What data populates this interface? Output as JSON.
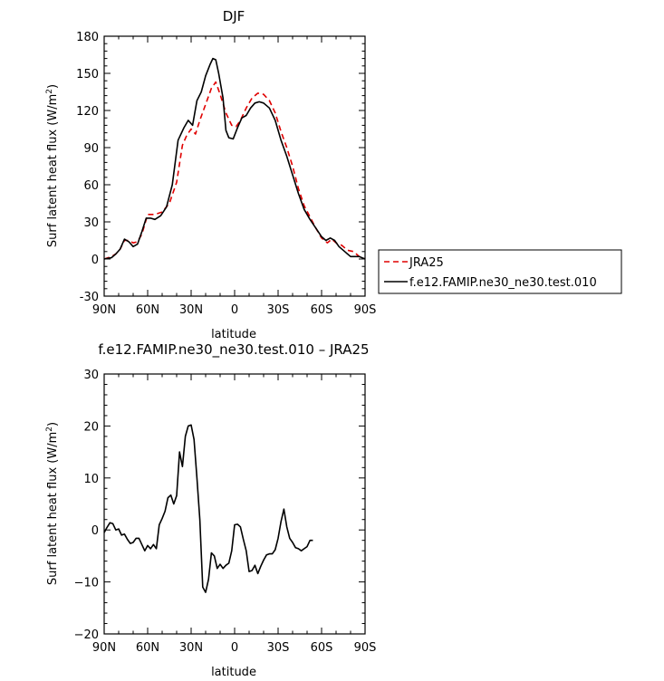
{
  "chart_data": [
    {
      "type": "line",
      "title": "DJF",
      "xlabel": "latitude",
      "ylabel": "Surf latent heat flux (W/m",
      "ylabel_sup": "2",
      "ylabel_end": ")",
      "xlim": [
        90,
        -90
      ],
      "ylim": [
        -30,
        180
      ],
      "xticks": [
        90,
        60,
        30,
        0,
        -30,
        -60,
        -90
      ],
      "xtick_labels": [
        "90N",
        "60N",
        "30N",
        "0",
        "30S",
        "60S",
        "90S"
      ],
      "yticks": [
        -30,
        0,
        30,
        60,
        90,
        120,
        150,
        180
      ],
      "ytick_labels": [
        "-30",
        "0",
        "30",
        "60",
        "90",
        "120",
        "150",
        "180"
      ],
      "legend_position": "right",
      "series": [
        {
          "name": "JRA25",
          "color": "#e00000",
          "dash": "dashed",
          "points": [
            [
              90,
              0
            ],
            [
              85,
              2
            ],
            [
              82,
              4
            ],
            [
              79,
              8
            ],
            [
              76,
              15
            ],
            [
              73,
              15
            ],
            [
              70,
              13
            ],
            [
              67,
              14
            ],
            [
              64,
              20
            ],
            [
              60,
              36
            ],
            [
              55,
              36
            ],
            [
              50,
              38
            ],
            [
              45,
              45
            ],
            [
              40,
              62
            ],
            [
              36,
              92
            ],
            [
              33,
              100
            ],
            [
              30,
              105
            ],
            [
              27,
              101
            ],
            [
              24,
              112
            ],
            [
              20,
              125
            ],
            [
              16,
              138
            ],
            [
              13,
              143
            ],
            [
              10,
              133
            ],
            [
              6,
              118
            ],
            [
              2,
              108
            ],
            [
              -1,
              107
            ],
            [
              -4,
              112
            ],
            [
              -8,
              122
            ],
            [
              -12,
              130
            ],
            [
              -16,
              134
            ],
            [
              -20,
              133
            ],
            [
              -24,
              128
            ],
            [
              -28,
              118
            ],
            [
              -32,
              103
            ],
            [
              -36,
              90
            ],
            [
              -40,
              75
            ],
            [
              -44,
              57
            ],
            [
              -48,
              43
            ],
            [
              -52,
              34
            ],
            [
              -56,
              25
            ],
            [
              -60,
              17
            ],
            [
              -64,
              13
            ],
            [
              -67,
              16
            ],
            [
              -70,
              13
            ],
            [
              -74,
              11
            ],
            [
              -78,
              7
            ],
            [
              -82,
              6
            ],
            [
              -86,
              2
            ],
            [
              -90,
              0
            ]
          ]
        },
        {
          "name": "f.e12.FAMIP.ne30_ne30.test.010",
          "color": "#000000",
          "dash": "solid",
          "points": [
            [
              90,
              0
            ],
            [
              85,
              1
            ],
            [
              82,
              4
            ],
            [
              79,
              8
            ],
            [
              76,
              16
            ],
            [
              73,
              14
            ],
            [
              70,
              10
            ],
            [
              67,
              12
            ],
            [
              64,
              22
            ],
            [
              61,
              33
            ],
            [
              58,
              33
            ],
            [
              55,
              32
            ],
            [
              51,
              35
            ],
            [
              47,
              42
            ],
            [
              43,
              60
            ],
            [
              39,
              96
            ],
            [
              35,
              106
            ],
            [
              32,
              112
            ],
            [
              29,
              108
            ],
            [
              26,
              128
            ],
            [
              23,
              135
            ],
            [
              20,
              148
            ],
            [
              17,
              157
            ],
            [
              15,
              162
            ],
            [
              13,
              161
            ],
            [
              11,
              150
            ],
            [
              8,
              130
            ],
            [
              6,
              104
            ],
            [
              4,
              98
            ],
            [
              1,
              97
            ],
            [
              -2,
              106
            ],
            [
              -5,
              114
            ],
            [
              -8,
              116
            ],
            [
              -11,
              122
            ],
            [
              -14,
              126
            ],
            [
              -17,
              127
            ],
            [
              -20,
              126
            ],
            [
              -24,
              122
            ],
            [
              -28,
              112
            ],
            [
              -32,
              96
            ],
            [
              -36,
              83
            ],
            [
              -40,
              68
            ],
            [
              -44,
              53
            ],
            [
              -48,
              40
            ],
            [
              -52,
              32
            ],
            [
              -56,
              25
            ],
            [
              -60,
              18
            ],
            [
              -63,
              15
            ],
            [
              -66,
              17
            ],
            [
              -69,
              15
            ],
            [
              -72,
              10
            ],
            [
              -76,
              6
            ],
            [
              -80,
              2
            ],
            [
              -83,
              2
            ],
            [
              -86,
              2
            ],
            [
              -90,
              0
            ]
          ]
        }
      ]
    },
    {
      "type": "line",
      "title": "f.e12.FAMIP.ne30_ne30.test.010  –  JRA25",
      "xlabel": "latitude",
      "ylabel": "Surf latent heat flux (W/m",
      "ylabel_sup": "2",
      "ylabel_end": ")",
      "xlim": [
        90,
        -90
      ],
      "ylim": [
        -20,
        30
      ],
      "xticks": [
        90,
        60,
        30,
        0,
        -30,
        -60,
        -90
      ],
      "xtick_labels": [
        "90N",
        "60N",
        "30N",
        "0",
        "30S",
        "60S",
        "90S"
      ],
      "yticks": [
        -20,
        -10,
        0,
        10,
        20,
        30
      ],
      "ytick_labels": [
        "−20",
        "−10",
        "0",
        "10",
        "20",
        "30"
      ],
      "series": [
        {
          "color": "#000000",
          "dash": "solid",
          "points": [
            [
              90,
              -0.5
            ],
            [
              88,
              0.5
            ],
            [
              86,
              1.4
            ],
            [
              84,
              1.2
            ],
            [
              82,
              0
            ],
            [
              80,
              0.2
            ],
            [
              78,
              -1
            ],
            [
              76,
              -0.8
            ],
            [
              74,
              -1.8
            ],
            [
              72,
              -2.6
            ],
            [
              70,
              -2.4
            ],
            [
              68,
              -1.6
            ],
            [
              66,
              -1.6
            ],
            [
              64,
              -2.8
            ],
            [
              62,
              -4
            ],
            [
              60,
              -3
            ],
            [
              58,
              -3.6
            ],
            [
              56,
              -2.8
            ],
            [
              54,
              -3.6
            ],
            [
              52,
              1
            ],
            [
              50,
              2.2
            ],
            [
              48,
              3.6
            ],
            [
              46,
              6.2
            ],
            [
              44,
              6.7
            ],
            [
              42,
              5
            ],
            [
              40,
              6.6
            ],
            [
              38,
              15
            ],
            [
              36,
              12.2
            ],
            [
              34,
              18
            ],
            [
              32,
              20
            ],
            [
              30,
              20.2
            ],
            [
              28,
              17.4
            ],
            [
              26,
              10
            ],
            [
              24,
              2
            ],
            [
              22,
              -11
            ],
            [
              20,
              -12
            ],
            [
              18,
              -9.5
            ],
            [
              16,
              -4.4
            ],
            [
              14,
              -5
            ],
            [
              12,
              -7.4
            ],
            [
              10,
              -6.6
            ],
            [
              8,
              -7.4
            ],
            [
              6,
              -6.8
            ],
            [
              4,
              -6.4
            ],
            [
              2,
              -4
            ],
            [
              0,
              1
            ],
            [
              -2,
              1.1
            ],
            [
              -4,
              0.6
            ],
            [
              -6,
              -1.8
            ],
            [
              -8,
              -4
            ],
            [
              -10,
              -8
            ],
            [
              -12,
              -7.8
            ],
            [
              -14,
              -6.8
            ],
            [
              -16,
              -8.4
            ],
            [
              -18,
              -7
            ],
            [
              -20,
              -5.8
            ],
            [
              -22,
              -4.8
            ],
            [
              -24,
              -4.6
            ],
            [
              -26,
              -4.6
            ],
            [
              -28,
              -3.8
            ],
            [
              -30,
              -1.6
            ],
            [
              -32,
              1.6
            ],
            [
              -34,
              4
            ],
            [
              -36,
              0.6
            ],
            [
              -38,
              -1.6
            ],
            [
              -40,
              -2.4
            ],
            [
              -42,
              -3.4
            ],
            [
              -44,
              -3.6
            ],
            [
              -46,
              -4
            ],
            [
              -48,
              -3.6
            ],
            [
              -50,
              -3.2
            ],
            [
              -52,
              -2
            ],
            [
              -54,
              -2
            ]
          ]
        }
      ]
    }
  ]
}
